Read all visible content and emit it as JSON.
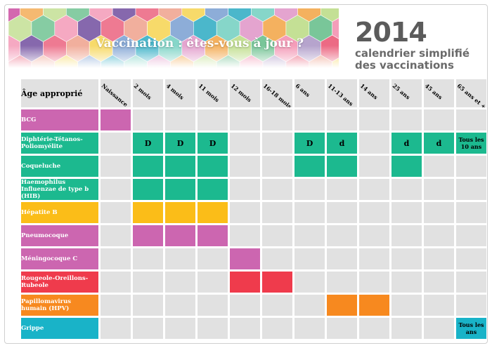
{
  "header": {
    "banner_title": "Vaccination : êtes-vous à jour ?",
    "year": "2014",
    "subtitle_line1": "calendrier simplifié",
    "subtitle_line2": "des vaccinations"
  },
  "table": {
    "corner_label": "Âge approprié",
    "ages": [
      "Naissance",
      "2 mois",
      "4 mois",
      "11 mois",
      "12 mois",
      "16-18 mois",
      "6 ans",
      "11-13 ans",
      "14 ans",
      "25 ans",
      "45 ans",
      "65 ans et +"
    ],
    "rows": [
      {
        "name": "BCG",
        "color": "#cc66b0",
        "cells": [
          {
            "c": 0,
            "text": ""
          }
        ]
      },
      {
        "name": "Diphtérie-Tétanos-Poliomyélite",
        "color": "#1cb98f",
        "cells": [
          {
            "c": 1,
            "text": "D"
          },
          {
            "c": 2,
            "text": "D"
          },
          {
            "c": 3,
            "text": "D"
          },
          {
            "c": 6,
            "text": "D"
          },
          {
            "c": 7,
            "text": "d"
          },
          {
            "c": 9,
            "text": "d"
          },
          {
            "c": 10,
            "text": "d"
          },
          {
            "c": 11,
            "text": "Tous les 10 ans"
          }
        ]
      },
      {
        "name": "Coqueluche",
        "color": "#1cb98f",
        "cells": [
          {
            "c": 1,
            "text": ""
          },
          {
            "c": 2,
            "text": ""
          },
          {
            "c": 3,
            "text": ""
          },
          {
            "c": 6,
            "text": ""
          },
          {
            "c": 7,
            "text": ""
          },
          {
            "c": 9,
            "text": ""
          }
        ]
      },
      {
        "name": "Haemophilus Influenzae de type b (HIB)",
        "color": "#1cb98f",
        "cells": [
          {
            "c": 1,
            "text": ""
          },
          {
            "c": 2,
            "text": ""
          },
          {
            "c": 3,
            "text": ""
          }
        ]
      },
      {
        "name": "Hépatite B",
        "color": "#fbbd18",
        "cells": [
          {
            "c": 1,
            "text": ""
          },
          {
            "c": 2,
            "text": ""
          },
          {
            "c": 3,
            "text": ""
          }
        ]
      },
      {
        "name": "Pneumocoque",
        "color": "#cc66b0",
        "cells": [
          {
            "c": 1,
            "text": ""
          },
          {
            "c": 2,
            "text": ""
          },
          {
            "c": 3,
            "text": ""
          }
        ]
      },
      {
        "name": "Méningocoque C",
        "color": "#cc66b0",
        "cells": [
          {
            "c": 4,
            "text": ""
          }
        ]
      },
      {
        "name": "Rougeole-Oreillons-Rubeole",
        "color": "#ef3b4c",
        "cells": [
          {
            "c": 4,
            "text": ""
          },
          {
            "c": 5,
            "text": ""
          }
        ]
      },
      {
        "name": "Papillomavirus humain (HPV)",
        "color": "#f7891f",
        "cells": [
          {
            "c": 7,
            "text": ""
          },
          {
            "c": 8,
            "text": ""
          }
        ]
      },
      {
        "name": "Grippe",
        "color": "#19b3c8",
        "cells": [
          {
            "c": 11,
            "text": "Tous les ans"
          }
        ]
      }
    ]
  }
}
